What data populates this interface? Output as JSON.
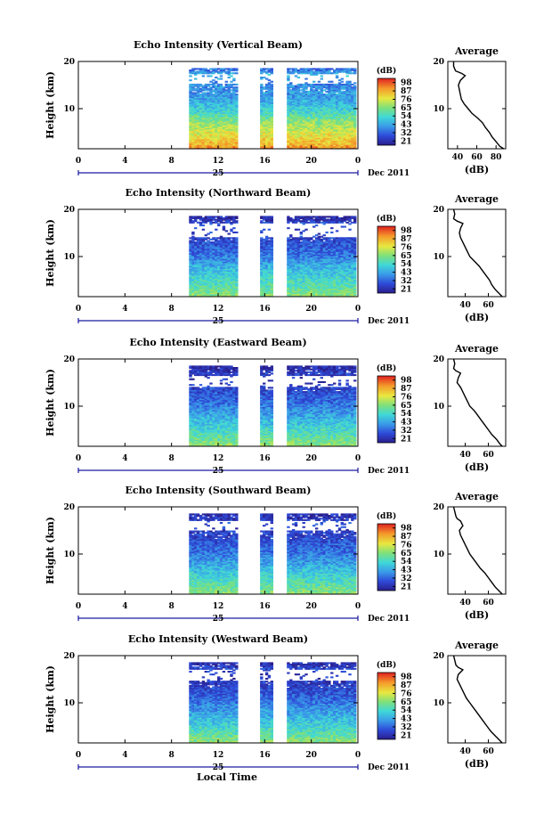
{
  "figure": {
    "xlabel_bottom": "Local Time",
    "date_label": "Dec 2011",
    "day_label": "25",
    "height_label": "Height (km)",
    "colorbar_unit": "(dB)",
    "colorbar_ticks": [
      "98",
      "87",
      "76",
      "65",
      "54",
      "43",
      "32",
      "21"
    ],
    "avg_title": "Average",
    "avg_xlabel": "(dB)"
  },
  "chart_data": [
    {
      "type": "heatmap",
      "title": "Echo Intensity (Vertical Beam)",
      "ylabel": "Height (km)",
      "x_ticks": [
        "0",
        "4",
        "8",
        "12",
        "16",
        "20",
        "0"
      ],
      "y_ticks": [
        "20",
        "10"
      ],
      "xlim": [
        0,
        24
      ],
      "ylim": [
        1.5,
        20
      ],
      "colorbar": {
        "unit": "(dB)",
        "ticks": [
          98,
          87,
          76,
          65,
          54,
          43,
          32,
          21
        ],
        "range": [
          21,
          98
        ]
      },
      "data_time_segments": [
        [
          9.5,
          13.6
        ],
        [
          15.6,
          16.5
        ],
        [
          17.9,
          23.8
        ]
      ],
      "top_gap_km": [
        [
          17.2,
          15.3
        ]
      ],
      "average_profile": {
        "title": "Average",
        "xlabel": "(dB)",
        "x_ticks": [
          "40",
          "60",
          "80"
        ],
        "xlim": [
          30,
          90
        ],
        "height_km": [
          1.5,
          2,
          3,
          4,
          5,
          6,
          7,
          8,
          9,
          10,
          11,
          12,
          13,
          14,
          15,
          16,
          17,
          17.5,
          18,
          19,
          20
        ],
        "intensity_db": [
          88,
          84,
          80,
          76,
          73,
          69,
          66,
          61,
          55,
          51,
          47,
          44,
          43,
          42,
          41,
          43,
          48,
          44,
          38,
          36,
          36
        ]
      }
    },
    {
      "type": "heatmap",
      "title": "Echo Intensity (Northward Beam)",
      "ylabel": "Height (km)",
      "x_ticks": [
        "0",
        "4",
        "8",
        "12",
        "16",
        "20",
        "0"
      ],
      "y_ticks": [
        "20",
        "10"
      ],
      "xlim": [
        0,
        24
      ],
      "ylim": [
        1.5,
        20
      ],
      "colorbar": {
        "unit": "(dB)",
        "ticks": [
          98,
          87,
          76,
          65,
          54,
          43,
          32,
          21
        ],
        "range": [
          21,
          98
        ]
      },
      "data_time_segments": [
        [
          9.5,
          13.6
        ],
        [
          15.6,
          16.5
        ],
        [
          17.9,
          23.8
        ]
      ],
      "top_gap_km": [
        [
          17.0,
          14.0
        ]
      ],
      "average_profile": {
        "title": "Average",
        "xlabel": "(dB)",
        "x_ticks": [
          "40",
          "60"
        ],
        "xlim": [
          25,
          75
        ],
        "height_km": [
          1.5,
          2,
          3,
          4,
          5,
          6,
          7,
          8,
          9,
          10,
          11,
          12,
          13,
          14,
          15,
          16,
          17,
          17.5,
          18,
          19,
          20
        ],
        "intensity_db": [
          72,
          70,
          66,
          63,
          61,
          58,
          55,
          52,
          48,
          44,
          42,
          40,
          38,
          36,
          35,
          36,
          38,
          33,
          30,
          31,
          30
        ]
      }
    },
    {
      "type": "heatmap",
      "title": "Echo Intensity (Eastward Beam)",
      "ylabel": "Height (km)",
      "x_ticks": [
        "0",
        "4",
        "8",
        "12",
        "16",
        "20",
        "0"
      ],
      "y_ticks": [
        "20",
        "10"
      ],
      "xlim": [
        0,
        24
      ],
      "ylim": [
        1.5,
        20
      ],
      "colorbar": {
        "unit": "(dB)",
        "ticks": [
          98,
          87,
          76,
          65,
          54,
          43,
          32,
          21
        ],
        "range": [
          21,
          98
        ]
      },
      "data_time_segments": [
        [
          9.5,
          13.6
        ],
        [
          15.6,
          16.5
        ],
        [
          17.9,
          23.8
        ]
      ],
      "top_gap_km": [
        [
          16.5,
          14.0
        ]
      ],
      "average_profile": {
        "title": "Average",
        "xlabel": "(dB)",
        "x_ticks": [
          "40",
          "60"
        ],
        "xlim": [
          25,
          75
        ],
        "height_km": [
          1.5,
          2,
          3,
          4,
          5,
          6,
          7,
          8,
          9,
          10,
          11,
          12,
          13,
          14,
          15,
          16,
          17,
          17.5,
          18,
          19,
          20
        ],
        "intensity_db": [
          72,
          70,
          67,
          63,
          60,
          57,
          54,
          51,
          48,
          44,
          42,
          40,
          38,
          36,
          33,
          34,
          36,
          32,
          30,
          31,
          30
        ]
      }
    },
    {
      "type": "heatmap",
      "title": "Echo Intensity (Southward Beam)",
      "ylabel": "Height (km)",
      "x_ticks": [
        "0",
        "4",
        "8",
        "12",
        "16",
        "20",
        "0"
      ],
      "y_ticks": [
        "20",
        "10"
      ],
      "xlim": [
        0,
        24
      ],
      "ylim": [
        1.5,
        20
      ],
      "colorbar": {
        "unit": "(dB)",
        "ticks": [
          98,
          87,
          76,
          65,
          54,
          43,
          32,
          21
        ],
        "range": [
          21,
          98
        ]
      },
      "data_time_segments": [
        [
          9.5,
          13.6
        ],
        [
          15.6,
          16.5
        ],
        [
          17.9,
          23.8
        ]
      ],
      "top_gap_km": [
        [
          17.0,
          15.0
        ]
      ],
      "average_profile": {
        "title": "Average",
        "xlabel": "(dB)",
        "x_ticks": [
          "40",
          "60"
        ],
        "xlim": [
          25,
          75
        ],
        "height_km": [
          1.5,
          2,
          3,
          4,
          5,
          6,
          7,
          8,
          9,
          10,
          11,
          12,
          13,
          14,
          15,
          16,
          17,
          17.5,
          18,
          19,
          20
        ],
        "intensity_db": [
          72,
          70,
          66,
          63,
          60,
          57,
          53,
          50,
          47,
          44,
          42,
          40,
          38,
          36,
          35,
          38,
          36,
          33,
          32,
          31,
          30
        ]
      }
    },
    {
      "type": "heatmap",
      "title": "Echo Intensity (Westward Beam)",
      "ylabel": "Height (km)",
      "x_ticks": [
        "0",
        "4",
        "8",
        "12",
        "16",
        "20",
        "0"
      ],
      "y_ticks": [
        "20",
        "10"
      ],
      "xlim": [
        0,
        24
      ],
      "ylim": [
        1.5,
        20
      ],
      "colorbar": {
        "unit": "(dB)",
        "ticks": [
          98,
          87,
          76,
          65,
          54,
          43,
          32,
          21
        ],
        "range": [
          21,
          98
        ]
      },
      "data_time_segments": [
        [
          9.5,
          13.6
        ],
        [
          15.6,
          16.5
        ],
        [
          17.9,
          23.8
        ]
      ],
      "top_gap_km": [
        [
          17.0,
          14.5
        ]
      ],
      "average_profile": {
        "title": "Average",
        "xlabel": "(dB)",
        "x_ticks": [
          "40",
          "60"
        ],
        "xlim": [
          25,
          75
        ],
        "height_km": [
          1.5,
          2,
          3,
          4,
          5,
          6,
          7,
          8,
          9,
          10,
          11,
          12,
          13,
          14,
          15,
          16,
          17,
          17.5,
          18,
          19,
          20
        ],
        "intensity_db": [
          72,
          70,
          66,
          62,
          59,
          56,
          53,
          50,
          47,
          44,
          41,
          39,
          37,
          35,
          33,
          34,
          38,
          34,
          32,
          31,
          30
        ]
      }
    }
  ]
}
